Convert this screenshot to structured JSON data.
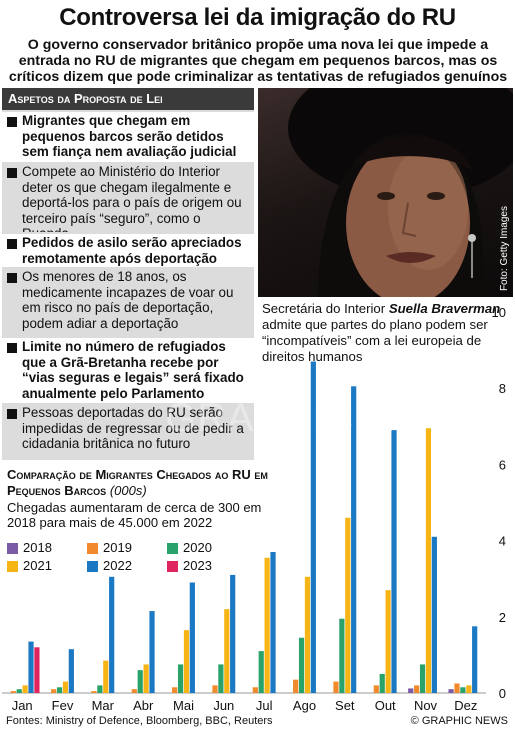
{
  "header": {
    "title": "Controversa lei da imigração do RU",
    "subtitle": "O governo conservador britânico propõe uma nova lei que impede a entrada no RU de migrantes que chegam em pequenos barcos, mas os críticos dizem que pode criminalizar as tentativas de refugiados genuínos"
  },
  "panel": {
    "title": "Aspetos da Proposta de Lei",
    "items": [
      {
        "text": "Migrantes que chegam em pequenos barcos serão detidos sem fiança nem avaliação judicial",
        "style": "bold"
      },
      {
        "text": "Compete ao Ministério do Interior deter os que chegam ilegalmente e deportá-los para o país de origem ou terceiro país “seguro”, como o Ruanda",
        "style": "plain"
      },
      {
        "text": "Pedidos de asilo serão apreciados remotamente após deportação",
        "style": "bold"
      },
      {
        "text": "Os menores de 18 anos, os medicamente incapazes de voar ou em risco no país de deportação, podem adiar a deportação",
        "style": "plain"
      },
      {
        "text": "Limite no número de refugiados que a Grã-Bretanha recebe por “vias seguras e legais” será fixado anualmente pelo Parlamento",
        "style": "bold"
      },
      {
        "text": "Pessoas deportadas do RU serão impedidas de regressar ou de pedir a cidadania britânica no futuro",
        "style": "plain"
      }
    ]
  },
  "photo": {
    "credit": "Foto: Getty Images",
    "caption_pre": "Secretária do Interior ",
    "caption_name": "Suella Braverman",
    "caption_post": " admite que partes do plano podem ser “incompatíveis” com a lei europeia de direitos humanos"
  },
  "watermark": "GRAPHIC NEWS",
  "chart_data": {
    "type": "bar",
    "title": "Comparação de Migrantes Chegados ao RU em Pequenos Barcos",
    "title_unit": "(000s)",
    "subtitle": "Chegadas aumentaram de cerca de 300 em 2018 para mais de 45.000 em 2022",
    "categories": [
      "Jan",
      "Fev",
      "Mar",
      "Abr",
      "Mai",
      "Jun",
      "Jul",
      "Ago",
      "Set",
      "Out",
      "Nov",
      "Dez"
    ],
    "ylim": [
      0,
      10
    ],
    "yticks": [
      0,
      2,
      4,
      6,
      8,
      10
    ],
    "grid": false,
    "legend_position": "left",
    "series": [
      {
        "name": "2018",
        "color": "#7b5aa6",
        "values": [
          0.0,
          0.0,
          0.0,
          0.0,
          0.0,
          0.0,
          0.0,
          0.0,
          0.0,
          0.0,
          0.12,
          0.1
        ]
      },
      {
        "name": "2019",
        "color": "#f08a2c",
        "values": [
          0.05,
          0.1,
          0.05,
          0.1,
          0.15,
          0.2,
          0.15,
          0.35,
          0.3,
          0.2,
          0.2,
          0.25
        ]
      },
      {
        "name": "2020",
        "color": "#2aa36a",
        "values": [
          0.1,
          0.15,
          0.2,
          0.6,
          0.75,
          0.75,
          1.1,
          1.45,
          1.95,
          0.5,
          0.75,
          0.15
        ]
      },
      {
        "name": "2021",
        "color": "#f7b515",
        "values": [
          0.2,
          0.3,
          0.85,
          0.75,
          1.65,
          2.2,
          3.55,
          3.05,
          4.6,
          2.7,
          6.95,
          0.2
        ]
      },
      {
        "name": "2022",
        "color": "#1b78c2",
        "values": [
          1.35,
          1.15,
          3.05,
          2.15,
          2.9,
          3.1,
          3.7,
          8.7,
          8.05,
          6.9,
          4.1,
          1.75
        ]
      },
      {
        "name": "2023",
        "color": "#e0255e",
        "values": [
          1.2,
          0.0,
          0.0,
          0.0,
          0.0,
          0.0,
          0.0,
          0.0,
          0.0,
          0.0,
          0.0,
          0.0
        ]
      }
    ]
  },
  "footer": {
    "sources": "Fontes: Ministry of Defence, Bloomberg, BBC, Reuters",
    "credit": "© GRAPHIC NEWS"
  }
}
